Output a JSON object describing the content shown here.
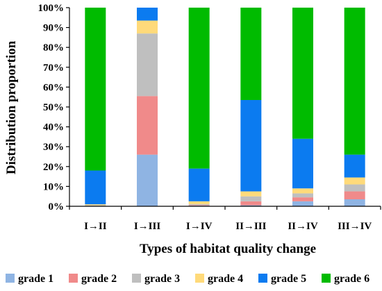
{
  "chart_data": {
    "type": "bar",
    "stacked": true,
    "normalized": true,
    "title": "",
    "xlabel": "Types of habitat quality change",
    "ylabel": "Distribution proportion",
    "ylim": [
      0,
      100
    ],
    "ytick_labels": [
      "0%",
      "10%",
      "20%",
      "30%",
      "40%",
      "50%",
      "60%",
      "70%",
      "80%",
      "90%",
      "100%"
    ],
    "categories": [
      "I→II",
      "I→III",
      "I→IV",
      "II→III",
      "II→IV",
      "III→IV"
    ],
    "series": [
      {
        "name": "grade 1",
        "color": "#8FB4E3",
        "values": [
          0.0,
          26.0,
          0.3,
          0.5,
          2.5,
          3.5
        ]
      },
      {
        "name": "grade 2",
        "color": "#F08A8A",
        "values": [
          0.0,
          29.5,
          0.3,
          2.0,
          2.0,
          4.0
        ]
      },
      {
        "name": "grade 3",
        "color": "#BFBFBF",
        "values": [
          0.5,
          31.5,
          0.5,
          2.5,
          2.0,
          3.5
        ]
      },
      {
        "name": "grade 4",
        "color": "#FFDA7A",
        "values": [
          0.5,
          6.5,
          1.4,
          2.5,
          2.5,
          3.5
        ]
      },
      {
        "name": "grade 5",
        "color": "#0B7BF0",
        "values": [
          17.0,
          6.5,
          16.5,
          46.0,
          25.0,
          11.5
        ]
      },
      {
        "name": "grade 6",
        "color": "#00BB00",
        "values": [
          82.0,
          0.0,
          81.0,
          46.5,
          66.0,
          74.0
        ]
      }
    ],
    "legend_position": "bottom",
    "grid": false
  }
}
